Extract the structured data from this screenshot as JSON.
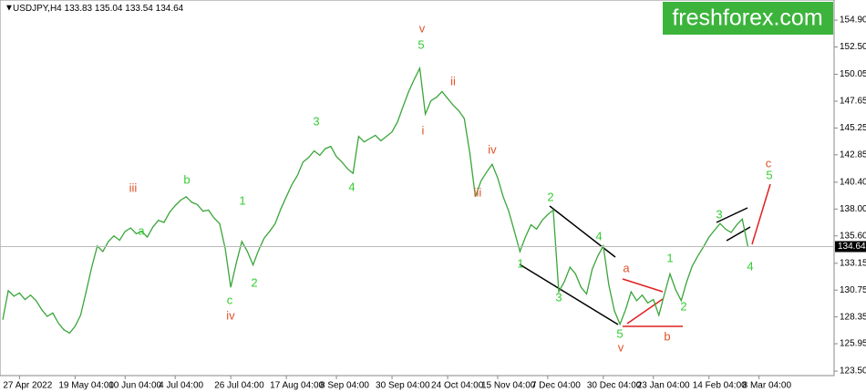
{
  "chart_data": {
    "type": "line",
    "title": "USDJPY,H4",
    "ohlc": [
      133.83,
      135.04,
      133.54,
      134.64
    ],
    "watermark": "freshforex.com",
    "last_price": 134.64,
    "grid": false,
    "ylim": [
      123.1,
      156.7
    ],
    "yticks": [
      {
        "value": 154.9,
        "label": "154.90"
      },
      {
        "value": 152.5,
        "label": "152.50"
      },
      150.05,
      147.65,
      145.25,
      142.85,
      {
        "value": 140.4,
        "label": "140.40"
      },
      {
        "value": 138,
        "label": "138.00"
      },
      {
        "value": 135.6,
        "label": "135.60"
      },
      133.15,
      130.75,
      128.35,
      125.95,
      {
        "value": 123.5,
        "label": "123.50"
      }
    ],
    "categories": [
      null,
      null,
      null,
      "27 Apr 2022",
      null,
      null,
      null,
      null,
      null,
      null,
      null,
      null,
      null,
      "19 May 04:00",
      null,
      null,
      null,
      null,
      null,
      null,
      null,
      null,
      "10 Jun 04:00",
      null,
      null,
      null,
      null,
      null,
      null,
      null,
      null,
      "4 Jul 04:00",
      null,
      null,
      null,
      null,
      null,
      null,
      null,
      null,
      null,
      "26 Jul 04:00",
      null,
      null,
      null,
      null,
      null,
      null,
      null,
      null,
      null,
      "17 Aug 04:00",
      null,
      null,
      null,
      null,
      null,
      null,
      null,
      null,
      "8 Sep 04:00",
      null,
      null,
      null,
      null,
      null,
      null,
      null,
      null,
      null,
      "30 Sep 04:00",
      null,
      null,
      null,
      null,
      null,
      null,
      null,
      null,
      null,
      "24 Oct 04:00",
      null,
      null,
      null,
      null,
      null,
      null,
      null,
      null,
      "15 Nov 04:00",
      null,
      null,
      null,
      null,
      null,
      null,
      null,
      null,
      "7 Dec 04:00",
      null,
      null,
      null,
      null,
      null,
      null,
      null,
      null,
      null,
      "30 Dec 04:00",
      null,
      null,
      null,
      null,
      null,
      null,
      null,
      null,
      "23 Jan 04:00",
      null,
      null,
      null,
      null,
      null,
      null,
      null,
      null,
      null,
      "14 Feb 04:00",
      null,
      null,
      null,
      null,
      null,
      null,
      null,
      null,
      "8 Mar 04:00",
      null,
      null,
      null,
      null,
      null,
      null,
      null,
      null,
      null,
      null,
      null,
      null,
      null
    ],
    "series": [
      {
        "name": "USDJPY",
        "color": "#3aa53a",
        "values": [
          128.1,
          130.7,
          130.2,
          130.5,
          129.9,
          130.3,
          129.8,
          129.0,
          128.4,
          128.7,
          127.8,
          127.2,
          126.9,
          127.5,
          128.5,
          130.6,
          132.8,
          134.7,
          134.2,
          135.1,
          135.6,
          135.2,
          136.0,
          136.3,
          135.8,
          136.0,
          135.5,
          136.4,
          137.0,
          136.8,
          137.7,
          138.3,
          138.8,
          139.1,
          138.6,
          138.4,
          137.8,
          137.9,
          137.2,
          136.7,
          134.5,
          131.0,
          133.2,
          135.1,
          134.2,
          133.0,
          134.3,
          135.4,
          136.0,
          136.7,
          138.0,
          139.1,
          140.2,
          141.0,
          142.2,
          142.6,
          143.2,
          142.8,
          143.4,
          143.6,
          142.7,
          142.2,
          141.6,
          141.2,
          144.5,
          144.0,
          144.3,
          144.6,
          144.1,
          144.5,
          144.9,
          145.8,
          147.2,
          148.5,
          149.6,
          150.6,
          146.5,
          147.7,
          148.0,
          148.5,
          147.9,
          147.3,
          146.8,
          146.1,
          143.0,
          139.1,
          140.5,
          141.3,
          142.0,
          140.8,
          139.1,
          137.8,
          136.0,
          134.2,
          135.5,
          136.6,
          136.2,
          137.0,
          137.5,
          137.9,
          130.6,
          131.5,
          132.8,
          132.2,
          131.0,
          130.4,
          132.6,
          133.8,
          134.7,
          131.2,
          128.9,
          127.7,
          129.0,
          130.6,
          129.8,
          130.3,
          129.6,
          129.9,
          128.5,
          130.4,
          132.2,
          130.8,
          129.8,
          131.5,
          132.9,
          133.8,
          134.6,
          135.5,
          136.1,
          136.7,
          136.2,
          135.9,
          136.6,
          137.1,
          134.64,
          null,
          null,
          null,
          null,
          null,
          null,
          null,
          null,
          null,
          null,
          null,
          null,
          null,
          null,
          null
        ]
      }
    ],
    "annotations": [
      {
        "text": "v",
        "color": "#e0522a"
      },
      {
        "text": "5",
        "color": "#33cc33"
      },
      {
        "text": "ii",
        "color": "#e0522a"
      },
      {
        "text": "i",
        "color": "#e0522a"
      },
      {
        "text": "iv",
        "color": "#e0522a"
      },
      {
        "text": "iii",
        "color": "#e0522a"
      },
      {
        "text": "3",
        "color": "#33cc33"
      },
      {
        "text": "4",
        "color": "#33cc33"
      },
      {
        "text": "b",
        "color": "#33cc33"
      },
      {
        "text": "iii",
        "color": "#e0522a"
      },
      {
        "text": "a",
        "color": "#33cc33"
      },
      {
        "text": "1",
        "color": "#33cc33"
      },
      {
        "text": "2",
        "color": "#33cc33"
      },
      {
        "text": "c",
        "color": "#33cc33"
      },
      {
        "text": "iv",
        "color": "#e0522a"
      },
      {
        "text": "2",
        "color": "#33cc33"
      },
      {
        "text": "4",
        "color": "#33cc33"
      },
      {
        "text": "1",
        "color": "#33cc33"
      },
      {
        "text": "3",
        "color": "#33cc33"
      },
      {
        "text": "5",
        "color": "#33cc33"
      },
      {
        "text": "v",
        "color": "#e0522a"
      },
      {
        "text": "a",
        "color": "#e0522a"
      },
      {
        "text": "b",
        "color": "#e0522a"
      },
      {
        "text": "1",
        "color": "#33cc33"
      },
      {
        "text": "2",
        "color": "#33cc33"
      },
      {
        "text": "3",
        "color": "#33cc33"
      },
      {
        "text": "4",
        "color": "#33cc33"
      },
      {
        "text": "c",
        "color": "#e0522a"
      },
      {
        "text": "5",
        "color": "#33cc33"
      }
    ]
  }
}
